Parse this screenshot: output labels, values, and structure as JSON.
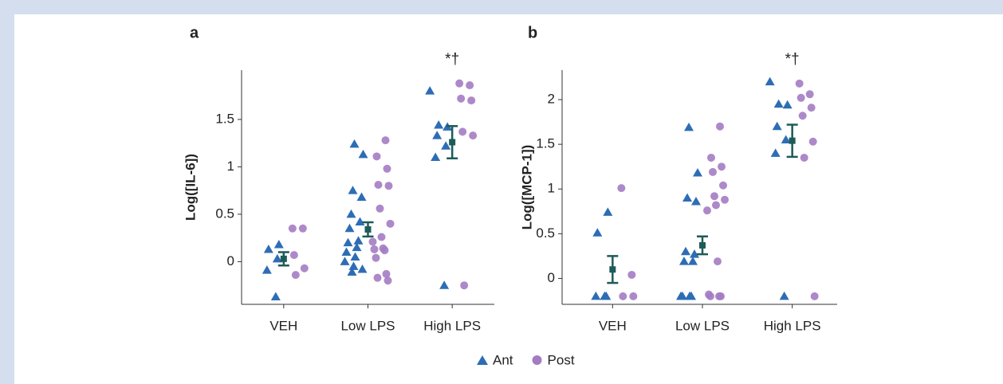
{
  "chart_data": [
    {
      "type": "strip",
      "panel_label": "a",
      "ylabel": "Log([IL-6])",
      "annotation": "*†",
      "annotation_category": 2,
      "categories": [
        "VEH",
        "Low LPS",
        "High LPS"
      ],
      "ylim": [
        -0.45,
        2.02
      ],
      "yticks": [
        0,
        0.5,
        1,
        1.5
      ],
      "series": [
        {
          "name": "Ant",
          "color": "#2d6db5",
          "marker": "triangle",
          "values": [
            [
              0.18,
              0.13,
              0.03,
              -0.09,
              -0.37
            ],
            [
              1.24,
              1.13,
              0.75,
              0.68,
              0.5,
              0.42,
              0.35,
              0.22,
              0.2,
              0.15,
              0.1,
              0.05,
              0.0,
              -0.05,
              -0.08,
              -0.11
            ],
            [
              1.8,
              1.44,
              1.42,
              1.33,
              1.22,
              1.1,
              -0.25
            ]
          ]
        },
        {
          "name": "Post",
          "color": "#a47cc3",
          "marker": "circle",
          "values": [
            [
              0.35,
              0.35,
              0.07,
              -0.07,
              -0.14
            ],
            [
              1.28,
              1.11,
              0.98,
              0.81,
              0.8,
              0.56,
              0.4,
              0.26,
              0.21,
              0.14,
              0.13,
              0.12,
              0.04,
              -0.13,
              -0.17,
              -0.2
            ],
            [
              1.88,
              1.86,
              1.72,
              1.7,
              1.37,
              1.33,
              -0.25
            ]
          ]
        }
      ],
      "means": {
        "color": "#1d5b58",
        "values": [
          0.03,
          0.34,
          1.26
        ],
        "errors": [
          0.07,
          0.075,
          0.17
        ]
      }
    },
    {
      "type": "strip",
      "panel_label": "b",
      "ylabel": "Log([MCP-1])",
      "annotation": "*†",
      "annotation_category": 2,
      "categories": [
        "VEH",
        "Low LPS",
        "High LPS"
      ],
      "ylim": [
        -0.29,
        2.33
      ],
      "yticks": [
        0,
        0.5,
        1,
        1.5,
        2
      ],
      "series": [
        {
          "name": "Ant",
          "color": "#2d6db5",
          "marker": "triangle",
          "values": [
            [
              0.74,
              0.51,
              -0.2,
              -0.2,
              -0.2
            ],
            [
              1.69,
              1.18,
              0.9,
              0.86,
              0.3,
              0.27,
              0.19,
              0.19,
              -0.2,
              -0.2,
              -0.2,
              -0.2
            ],
            [
              2.2,
              1.95,
              1.94,
              1.7,
              1.55,
              1.4,
              -0.2
            ]
          ]
        },
        {
          "name": "Post",
          "color": "#a47cc3",
          "marker": "circle",
          "values": [
            [
              1.01,
              0.04,
              -0.2,
              -0.2
            ],
            [
              1.7,
              1.35,
              1.25,
              1.19,
              1.04,
              0.92,
              0.88,
              0.82,
              0.76,
              0.19,
              -0.18,
              -0.2,
              -0.2,
              -0.2
            ],
            [
              2.18,
              2.06,
              2.02,
              1.91,
              1.82,
              1.53,
              1.35,
              -0.2
            ]
          ]
        }
      ],
      "means": {
        "color": "#1d5b58",
        "values": [
          0.1,
          0.37,
          1.54
        ],
        "errors": [
          0.15,
          0.1,
          0.18
        ]
      }
    }
  ]
}
